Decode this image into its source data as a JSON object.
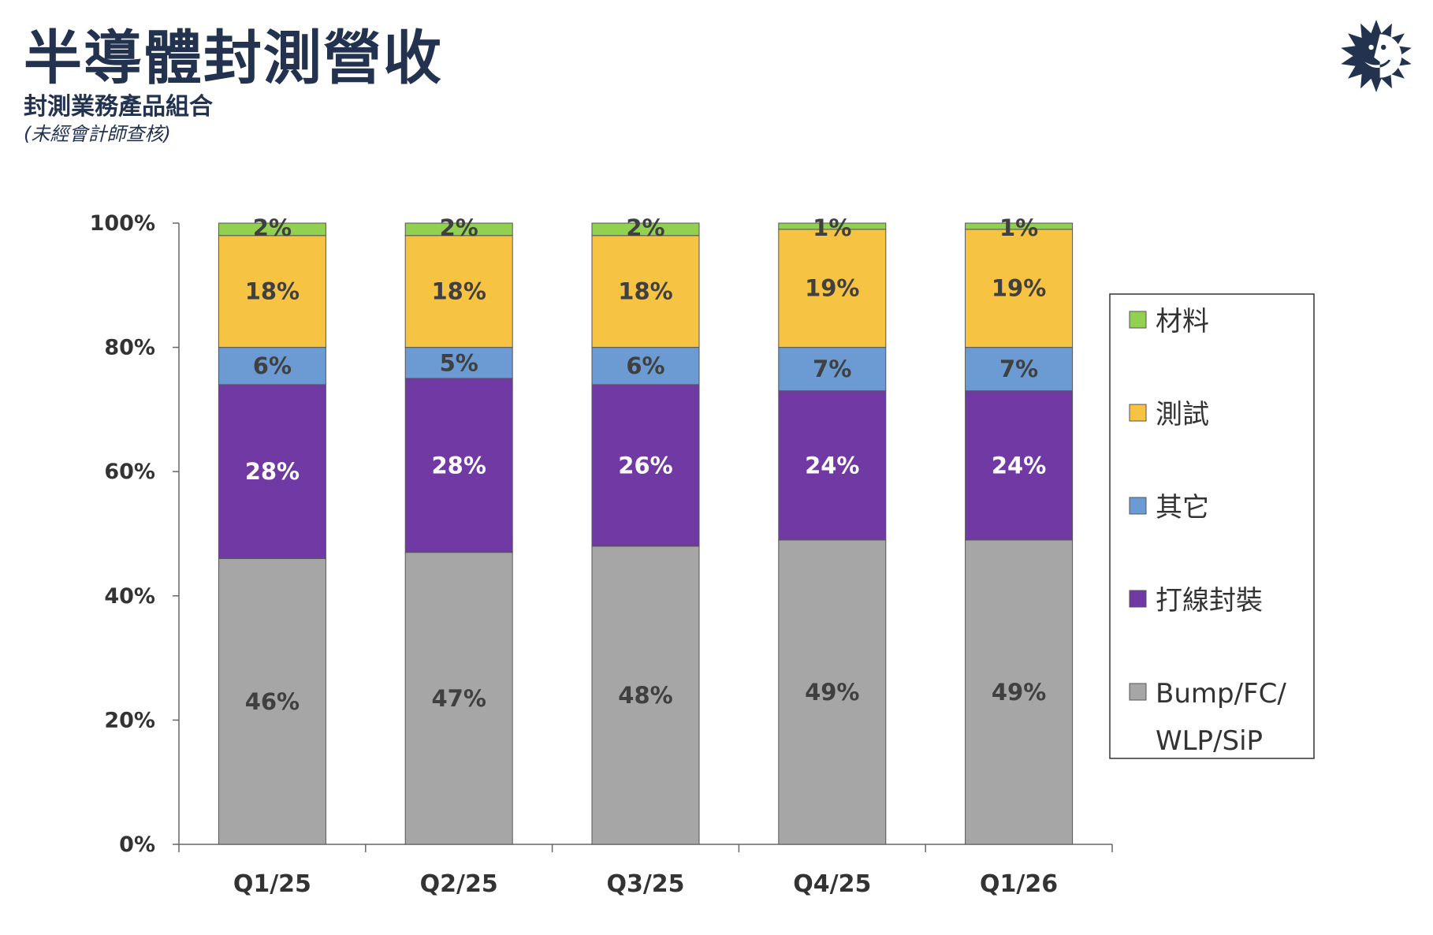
{
  "header": {
    "title": "半導體封測營收",
    "subtitle": "封測業務產品組合",
    "note": "(未經會計師查核)"
  },
  "logo": {
    "icon": "sun-face-logo",
    "color": "#22324f"
  },
  "chart_data": {
    "type": "bar",
    "stacked": true,
    "categories": [
      "Q1/25",
      "Q2/25",
      "Q3/25",
      "Q4/25",
      "Q1/26"
    ],
    "ylim": [
      0,
      100
    ],
    "yticks": [
      "0%",
      "20%",
      "40%",
      "60%",
      "80%",
      "100%"
    ],
    "legend_position": "right",
    "series": [
      {
        "name": "Bump/FC/ WLP/SiP",
        "legend_lines": [
          "Bump/FC/",
          "WLP/SiP"
        ],
        "color": "#a6a6a6",
        "label_color": "#404040",
        "values": [
          46,
          47,
          48,
          49,
          49
        ],
        "labels": [
          "46%",
          "47%",
          "48%",
          "49%",
          "49%"
        ]
      },
      {
        "name": "打線封裝",
        "color": "#7039a4",
        "label_color": "#ffffff",
        "values": [
          28,
          28,
          26,
          24,
          24
        ],
        "labels": [
          "28%",
          "28%",
          "26%",
          "24%",
          "24%"
        ]
      },
      {
        "name": "其它",
        "color": "#6b9bd2",
        "label_color": "#404040",
        "values": [
          6,
          5,
          6,
          7,
          7
        ],
        "labels": [
          "6%",
          "5%",
          "6%",
          "7%",
          "7%"
        ]
      },
      {
        "name": "測試",
        "color": "#f6c343",
        "label_color": "#404040",
        "values": [
          18,
          18,
          18,
          19,
          19
        ],
        "labels": [
          "18%",
          "18%",
          "18%",
          "19%",
          "19%"
        ]
      },
      {
        "name": "材料",
        "color": "#92d050",
        "label_color": "#404040",
        "values": [
          2,
          2,
          2,
          1,
          1
        ],
        "labels": [
          "2%",
          "2%",
          "2%",
          "1%",
          "1%"
        ]
      }
    ]
  }
}
